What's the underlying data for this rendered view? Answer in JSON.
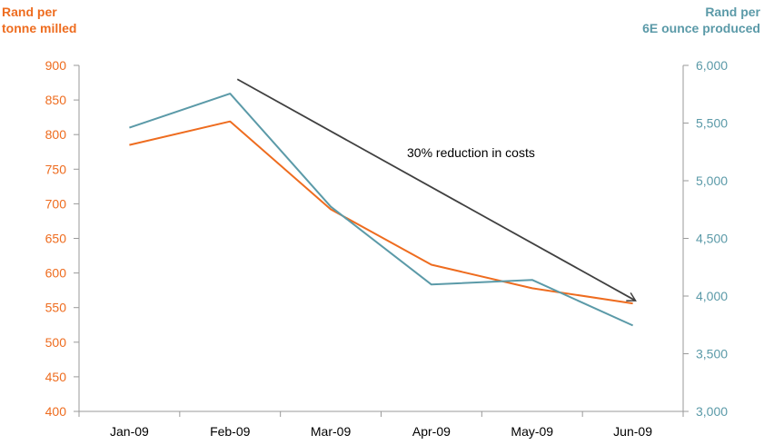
{
  "colors": {
    "primary": "#ee6c1f",
    "secondary": "#5b9aa8",
    "axis": "#9a9a9a",
    "annotation": "#404040",
    "text": "#000000"
  },
  "chart_data": {
    "type": "line",
    "categories": [
      "Jan-09",
      "Feb-09",
      "Mar-09",
      "Apr-09",
      "May-09",
      "Jun-09"
    ],
    "y_left": {
      "label_lines": [
        "Rand per",
        "tonne milled"
      ],
      "ylim": [
        400,
        900
      ],
      "ticks": [
        400,
        450,
        500,
        550,
        600,
        650,
        700,
        750,
        800,
        850,
        900
      ],
      "tick_labels": [
        "400",
        "450",
        "500",
        "550",
        "600",
        "650",
        "700",
        "750",
        "800",
        "850",
        "900"
      ]
    },
    "y_right": {
      "label_lines": [
        "Rand per",
        "6E ounce produced"
      ],
      "ylim": [
        3000,
        6000
      ],
      "ticks": [
        3000,
        3500,
        4000,
        4500,
        5000,
        5500,
        6000
      ],
      "tick_labels": [
        "3,000",
        "3,500",
        "4,000",
        "4,500",
        "5,000",
        "5,500",
        "6,000"
      ]
    },
    "series": [
      {
        "axis": "left",
        "color": "#ee6c1f",
        "values": [
          785,
          819,
          692,
          612,
          578,
          556
        ]
      },
      {
        "axis": "right",
        "color": "#5b9aa8",
        "values": [
          5460,
          5755,
          4775,
          4100,
          4140,
          3745
        ]
      }
    ],
    "annotation": {
      "text": "30% reduction in costs",
      "arrow_from": {
        "x": "Feb-09",
        "y_left": 880
      },
      "arrow_to": {
        "x": "Jun-09",
        "y_left": 560
      }
    },
    "grid": false,
    "legend": "none"
  }
}
